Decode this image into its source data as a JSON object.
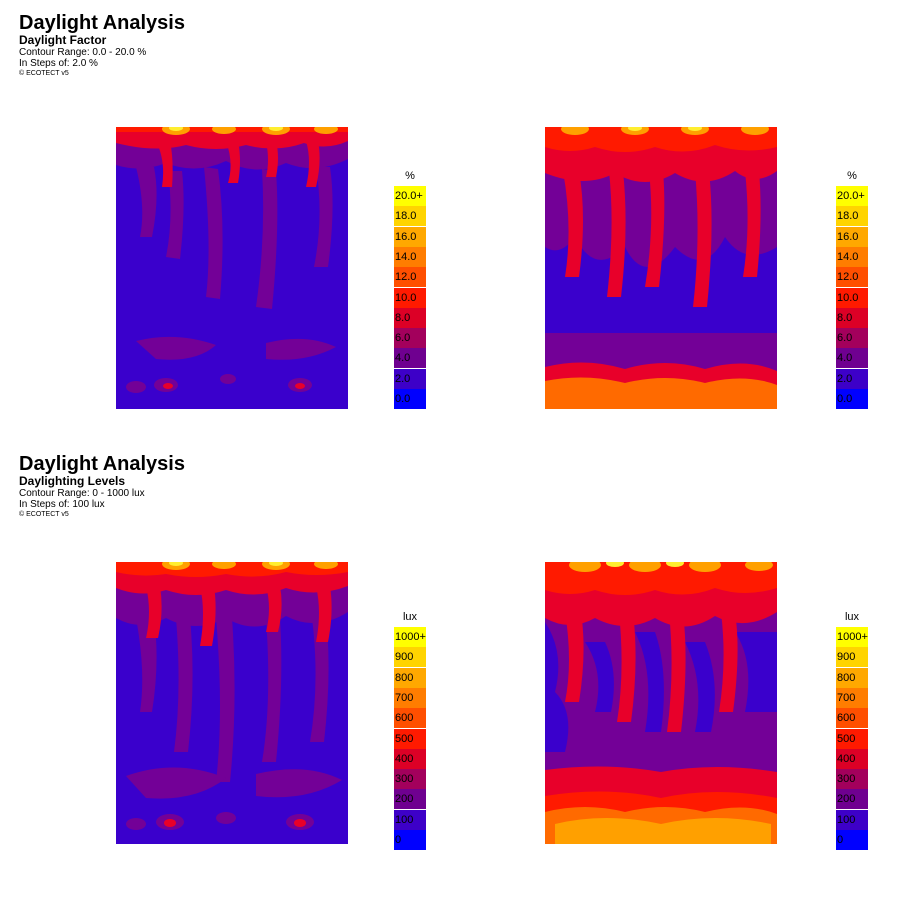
{
  "sections": [
    {
      "title": "Daylight Analysis",
      "subtitle": "Daylight Factor",
      "range": "Contour Range: 0.0 - 20.0 %",
      "steps": "In Steps of: 2.0 %",
      "copyright": "© ECOTECT v5",
      "legend": {
        "unit": "%",
        "labels": [
          "20.0+",
          "18.0",
          "16.0",
          "14.0",
          "12.0",
          "10.0",
          "8.0",
          "6.0",
          "4.0",
          "2.0",
          "0.0"
        ]
      }
    },
    {
      "title": "Daylight Analysis",
      "subtitle": "Daylighting Levels",
      "range": "Contour Range: 0 - 1000 lux",
      "steps": "In Steps of: 100 lux",
      "copyright": "© ECOTECT v5",
      "legend": {
        "unit": "lux",
        "labels": [
          "1000+",
          "900",
          "800",
          "700",
          "600",
          "500",
          "400",
          "300",
          "200",
          "100",
          "0"
        ]
      }
    }
  ],
  "colors": {
    "scale": [
      "#ffff00",
      "#ffd400",
      "#ffa800",
      "#ff7d00",
      "#ff4f00",
      "#ff1a00",
      "#dc0026",
      "#a3005c",
      "#6f0090",
      "#3d00c8",
      "#0000ff"
    ],
    "base": "#3a00cc",
    "purple": "#730097",
    "red": "#e8002a",
    "brightred": "#ff1a00",
    "orange": "#ff6a00",
    "amber": "#ffa000",
    "yellow": "#ffee30",
    "white": "#fffde0"
  }
}
